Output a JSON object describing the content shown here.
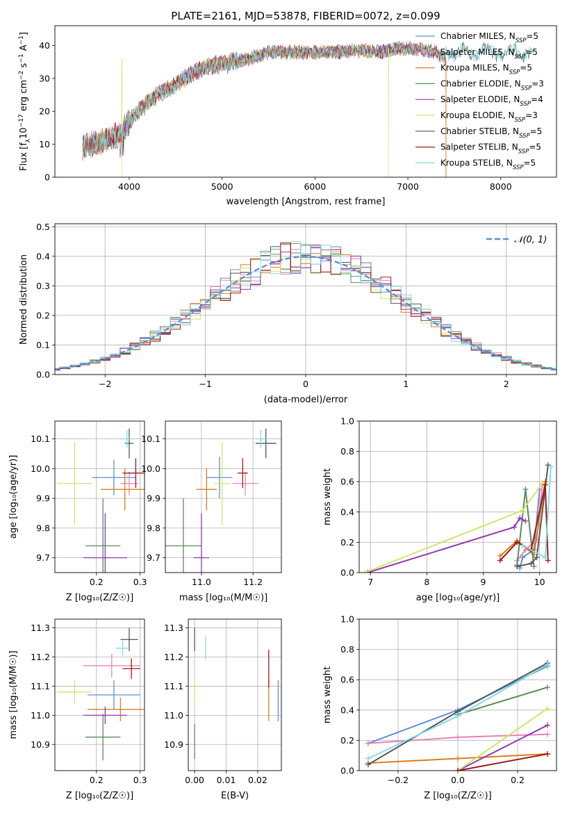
{
  "colors": {
    "Chabrier MILES": "#5b8fd6",
    "Salpeter MILES": "#e882b8",
    "Kroupa MILES": "#e07b1a",
    "Chabrier ELODIE": "#5c8a5c",
    "Salpeter ELODIE": "#8e36b0",
    "Kroupa ELODIE": "#cfe56a",
    "Chabrier STELIB": "#555555",
    "Salpeter STELIB": "#a01818",
    "Kroupa STELIB": "#7fdce6"
  },
  "chart_data": [
    {
      "id": "spectrum",
      "type": "line",
      "title": "PLATE=2161, MJD=53878, FIBERID=0072, z=0.099",
      "xlabel": "wavelength [Angstrom, rest frame]",
      "ylabel": "Flux [fλ10⁻¹⁷ erg cm⁻² s⁻¹ A⁻¹]",
      "xlim": [
        3200,
        8600
      ],
      "ylim": [
        0,
        46
      ],
      "xticks": [
        4000,
        5000,
        6000,
        7000,
        8000
      ],
      "yticks": [
        0,
        10,
        20,
        30,
        40
      ],
      "legend_position": "upper-right",
      "legend": [
        {
          "model": "Chabrier MILES",
          "label": "Chabrier MILES, N",
          "sub": "SSP",
          "tail": "=5"
        },
        {
          "model": "Salpeter MILES",
          "label": "Salpeter MILES, N",
          "sub": "SSP",
          "tail": "=5"
        },
        {
          "model": "Kroupa MILES",
          "label": "Kroupa MILES, N",
          "sub": "SSP",
          "tail": "=5"
        },
        {
          "model": "Chabrier ELODIE",
          "label": "Chabrier ELODIE, N",
          "sub": "SSP",
          "tail": "=3"
        },
        {
          "model": "Salpeter ELODIE",
          "label": "Salpeter ELODIE, N",
          "sub": "SSP",
          "tail": "=4"
        },
        {
          "model": "Kroupa ELODIE",
          "label": "Kroupa ELODIE, N",
          "sub": "SSP",
          "tail": "=3"
        },
        {
          "model": "Chabrier STELIB",
          "label": "Chabrier STELIB, N",
          "sub": "SSP",
          "tail": "=5"
        },
        {
          "model": "Salpeter STELIB",
          "label": "Salpeter STELIB, N",
          "sub": "SSP",
          "tail": "=5"
        },
        {
          "model": "Kroupa STELIB",
          "label": "Kroupa STELIB, N",
          "sub": "SSP",
          "tail": "=5"
        }
      ],
      "continuum": [
        [
          3500,
          9
        ],
        [
          3700,
          11
        ],
        [
          3900,
          13
        ],
        [
          4000,
          17
        ],
        [
          4100,
          20
        ],
        [
          4300,
          25
        ],
        [
          4500,
          28
        ],
        [
          4700,
          32
        ],
        [
          4900,
          34
        ],
        [
          5100,
          35
        ],
        [
          5300,
          36
        ],
        [
          5500,
          38
        ],
        [
          5700,
          38
        ],
        [
          5900,
          38
        ],
        [
          6100,
          38
        ],
        [
          6300,
          38
        ],
        [
          6500,
          38.5
        ],
        [
          6700,
          38
        ],
        [
          6900,
          39
        ],
        [
          7100,
          39
        ],
        [
          7300,
          38
        ],
        [
          7410,
          36
        ]
      ],
      "kroupa_stelib_extends_to": 8350,
      "notable_dips": [
        {
          "model": "Kroupa MILES",
          "x": 7410,
          "y": 0
        },
        {
          "model": "Kroupa ELODIE",
          "x": 6790,
          "y": 0
        },
        {
          "model": "Kroupa ELODIE",
          "x": 3920,
          "y": 0
        }
      ]
    },
    {
      "id": "residuals",
      "type": "histogram",
      "xlabel": "(data-model)/error",
      "ylabel": "Normed distribution",
      "xlim": [
        -2.5,
        2.5
      ],
      "ylim": [
        0,
        0.51
      ],
      "xticks": [
        -2,
        -1,
        0,
        1,
        2
      ],
      "yticks": [
        0.0,
        0.1,
        0.2,
        0.3,
        0.4,
        0.5
      ],
      "bin_width": 0.1,
      "legend_position": "upper-right",
      "reference": {
        "label": "𝒩(0, 1)",
        "mu": 0,
        "sigma": 1,
        "color": "#5b8fd6"
      }
    },
    {
      "id": "age_vs_Z",
      "type": "errorbar",
      "xlabel": "Z [log₁₀(Z/Z☉)]",
      "ylabel": "age  [log₁₀(age/yr)]",
      "xlim": [
        0.105,
        0.31
      ],
      "ylim": [
        9.65,
        10.16
      ],
      "xticks": [
        0.2,
        0.3
      ],
      "yticks": [
        9.7,
        9.8,
        9.9,
        10.0,
        10.1
      ],
      "points": [
        {
          "model": "Chabrier MILES",
          "x": 0.24,
          "xerr": 0.05,
          "y": 9.97,
          "yerr": 0.06
        },
        {
          "model": "Salpeter MILES",
          "x": 0.275,
          "xerr": 0.02,
          "y": 9.95,
          "yerr": 0.04
        },
        {
          "model": "Kroupa MILES",
          "x": 0.265,
          "xerr": 0.055,
          "y": 9.93,
          "yerr": 0.07
        },
        {
          "model": "Chabrier ELODIE",
          "x": 0.215,
          "xerr": 0.04,
          "y": 9.74,
          "yerr": 0.16
        },
        {
          "model": "Salpeter ELODIE",
          "x": 0.22,
          "xerr": 0.05,
          "y": 9.7,
          "yerr": 0.15
        },
        {
          "model": "Kroupa ELODIE",
          "x": 0.15,
          "xerr": 0.04,
          "y": 9.95,
          "yerr": 0.14
        },
        {
          "model": "Chabrier STELIB",
          "x": 0.275,
          "xerr": 0.01,
          "y": 10.085,
          "yerr": 0.05
        },
        {
          "model": "Salpeter STELIB",
          "x": 0.29,
          "xerr": 0.03,
          "y": 9.985,
          "yerr": 0.05
        },
        {
          "model": "Kroupa STELIB",
          "x": 0.27,
          "xerr": 0.015,
          "y": 10.1,
          "yerr": 0.03
        }
      ]
    },
    {
      "id": "age_vs_mass",
      "type": "errorbar",
      "xlabel": "mass [log₁₀(M/M☉)]",
      "ylabel": "",
      "xlim": [
        10.86,
        11.31
      ],
      "ylim": [
        9.65,
        10.16
      ],
      "xticks": [
        11.0,
        11.2
      ],
      "yticks": [
        9.7,
        9.8,
        9.9,
        10.0,
        10.1
      ],
      "points": [
        {
          "model": "Chabrier MILES",
          "x": 11.07,
          "xerr": 0.05,
          "y": 9.97,
          "yerr": 0.07
        },
        {
          "model": "Salpeter MILES",
          "x": 11.17,
          "xerr": 0.05,
          "y": 9.95,
          "yerr": 0.04
        },
        {
          "model": "Kroupa MILES",
          "x": 11.02,
          "xerr": 0.04,
          "y": 9.93,
          "yerr": 0.07
        },
        {
          "model": "Chabrier ELODIE",
          "x": 10.93,
          "xerr": 0.07,
          "y": 9.74,
          "yerr": 0.16
        },
        {
          "model": "Salpeter ELODIE",
          "x": 11.0,
          "xerr": 0.03,
          "y": 9.7,
          "yerr": 0.15
        },
        {
          "model": "Kroupa ELODIE",
          "x": 11.08,
          "xerr": 0.03,
          "y": 9.95,
          "yerr": 0.14
        },
        {
          "model": "Chabrier STELIB",
          "x": 11.25,
          "xerr": 0.04,
          "y": 10.085,
          "yerr": 0.05
        },
        {
          "model": "Salpeter STELIB",
          "x": 11.16,
          "xerr": 0.02,
          "y": 9.985,
          "yerr": 0.05
        },
        {
          "model": "Kroupa STELIB",
          "x": 11.23,
          "xerr": 0.02,
          "y": 10.1,
          "yerr": 0.03
        }
      ]
    },
    {
      "id": "weight_vs_age",
      "type": "line",
      "xlabel": "age  [log₁₀(age/yr)]",
      "ylabel": "mass weight",
      "xlim": [
        6.8,
        10.3
      ],
      "ylim": [
        0,
        1.0
      ],
      "xticks": [
        7,
        8,
        9,
        10
      ],
      "yticks": [
        0.0,
        0.2,
        0.4,
        0.6,
        0.8,
        1.0
      ],
      "series": [
        {
          "model": "Chabrier MILES",
          "points": [
            [
              9.65,
              0.03
            ],
            [
              9.7,
              0.1
            ],
            [
              9.9,
              0.15
            ],
            [
              10.0,
              0.55
            ]
          ]
        },
        {
          "model": "Salpeter MILES",
          "points": [
            [
              9.6,
              0.08
            ],
            [
              9.75,
              0.15
            ],
            [
              9.95,
              0.22
            ],
            [
              10.05,
              0.58
            ]
          ]
        },
        {
          "model": "Kroupa MILES",
          "points": [
            [
              9.3,
              0.11
            ],
            [
              9.6,
              0.21
            ],
            [
              9.9,
              0.12
            ],
            [
              10.1,
              0.6
            ]
          ]
        },
        {
          "model": "Chabrier ELODIE",
          "points": [
            [
              9.6,
              0.05
            ],
            [
              9.75,
              0.55
            ],
            [
              9.9,
              0.04
            ]
          ]
        },
        {
          "model": "Salpeter ELODIE",
          "points": [
            [
              6.95,
              0.0
            ],
            [
              9.55,
              0.3
            ],
            [
              9.65,
              0.36
            ],
            [
              9.75,
              0.34
            ]
          ]
        },
        {
          "model": "Kroupa ELODIE",
          "points": [
            [
              6.9,
              0.0
            ],
            [
              9.7,
              0.41
            ],
            [
              10.05,
              0.59
            ]
          ]
        },
        {
          "model": "Chabrier STELIB",
          "points": [
            [
              9.6,
              0.04
            ],
            [
              9.85,
              0.06
            ],
            [
              9.95,
              0.1
            ],
            [
              10.15,
              0.71
            ]
          ]
        },
        {
          "model": "Salpeter STELIB",
          "points": [
            [
              9.3,
              0.08
            ],
            [
              9.6,
              0.2
            ],
            [
              9.85,
              0.15
            ],
            [
              10.1,
              0.58
            ],
            [
              10.15,
              0.08
            ]
          ]
        },
        {
          "model": "Kroupa STELIB",
          "points": [
            [
              9.7,
              0.18
            ],
            [
              10.1,
              0.1
            ],
            [
              10.2,
              0.7
            ]
          ]
        }
      ]
    },
    {
      "id": "mass_vs_Z",
      "type": "errorbar",
      "xlabel": "Z [log₁₀(Z/Z☉)]",
      "ylabel": "mass [log₁₀(M/M☉)]",
      "xlim": [
        0.105,
        0.31
      ],
      "ylim": [
        10.81,
        11.33
      ],
      "xticks": [
        0.2,
        0.3
      ],
      "yticks": [
        10.9,
        11.0,
        11.1,
        11.2,
        11.3
      ],
      "points": [
        {
          "model": "Chabrier MILES",
          "x": 0.24,
          "xerr": 0.06,
          "y": 11.07,
          "yerr": 0.05
        },
        {
          "model": "Salpeter MILES",
          "x": 0.235,
          "xerr": 0.065,
          "y": 11.17,
          "yerr": 0.04
        },
        {
          "model": "Kroupa MILES",
          "x": 0.255,
          "xerr": 0.075,
          "y": 11.02,
          "yerr": 0.04
        },
        {
          "model": "Chabrier ELODIE",
          "x": 0.215,
          "xerr": 0.04,
          "y": 10.925,
          "yerr": 0.08
        },
        {
          "model": "Salpeter ELODIE",
          "x": 0.22,
          "xerr": 0.05,
          "y": 11.0,
          "yerr": 0.03
        },
        {
          "model": "Kroupa ELODIE",
          "x": 0.15,
          "xerr": 0.04,
          "y": 11.08,
          "yerr": 0.04
        },
        {
          "model": "Chabrier STELIB",
          "x": 0.275,
          "xerr": 0.02,
          "y": 11.26,
          "yerr": 0.04
        },
        {
          "model": "Salpeter STELIB",
          "x": 0.28,
          "xerr": 0.02,
          "y": 11.16,
          "yerr": 0.035
        },
        {
          "model": "Kroupa STELIB",
          "x": 0.26,
          "xerr": 0.015,
          "y": 11.23,
          "yerr": 0.025
        }
      ]
    },
    {
      "id": "mass_vs_ebv",
      "type": "errorbar",
      "xlabel": "E(B-V)",
      "ylabel": "",
      "xlim": [
        -0.002,
        0.0275
      ],
      "ylim": [
        10.81,
        11.33
      ],
      "xticks": [
        0.0,
        0.01,
        0.02
      ],
      "xtick_labels": [
        "0.00",
        "0.01",
        "0.02"
      ],
      "yticks": [
        10.9,
        11.0,
        11.1,
        11.2,
        11.3
      ],
      "points": [
        {
          "model": "Chabrier MILES",
          "x": 0.0265,
          "y": 11.05,
          "yerr": 0.07
        },
        {
          "model": "Kroupa MILES",
          "x": 0.0235,
          "y": 11.05,
          "yerr": 0.07
        },
        {
          "model": "Salpeter STELIB",
          "x": 0.0235,
          "y": 11.16,
          "yerr": 0.065
        },
        {
          "model": "Kroupa STELIB",
          "x": 0.0035,
          "y": 11.23,
          "yerr": 0.04
        },
        {
          "model": "Chabrier STELIB",
          "x": 0.0,
          "y": 11.26,
          "yerr": 0.04
        },
        {
          "model": "Kroupa ELODIE",
          "x": 0.0,
          "y": 11.08,
          "yerr": 0.04
        },
        {
          "model": "Chabrier ELODIE",
          "x": 0.0,
          "y": 10.91,
          "yerr": 0.06
        }
      ]
    },
    {
      "id": "weight_vs_Z",
      "type": "line",
      "xlabel": "Z [log₁₀(Z/Z☉)]",
      "ylabel": "mass weight",
      "xlim": [
        -0.33,
        0.33
      ],
      "ylim": [
        0,
        1.0
      ],
      "xticks": [
        -0.2,
        0.0,
        0.2
      ],
      "yticks": [
        0.0,
        0.2,
        0.4,
        0.6,
        0.8,
        1.0
      ],
      "series": [
        {
          "model": "Chabrier MILES",
          "points": [
            [
              -0.3,
              0.18
            ],
            [
              0.0,
              0.4
            ],
            [
              0.3,
              0.69
            ]
          ]
        },
        {
          "model": "Salpeter MILES",
          "points": [
            [
              -0.3,
              0.18
            ],
            [
              0.0,
              0.22
            ],
            [
              0.3,
              0.24
            ]
          ]
        },
        {
          "model": "Kroupa MILES",
          "points": [
            [
              -0.3,
              0.05
            ],
            [
              0.0,
              0.08
            ],
            [
              0.3,
              0.11
            ]
          ]
        },
        {
          "model": "Chabrier ELODIE",
          "points": [
            [
              0.0,
              0.37
            ],
            [
              0.3,
              0.55
            ]
          ]
        },
        {
          "model": "Salpeter ELODIE",
          "points": [
            [
              0.0,
              0.0
            ],
            [
              0.3,
              0.3
            ]
          ]
        },
        {
          "model": "Kroupa ELODIE",
          "points": [
            [
              0.0,
              0.0
            ],
            [
              0.3,
              0.41
            ]
          ]
        },
        {
          "model": "Chabrier STELIB",
          "points": [
            [
              -0.3,
              0.04
            ],
            [
              0.0,
              0.39
            ],
            [
              0.3,
              0.71
            ]
          ]
        },
        {
          "model": "Salpeter STELIB",
          "points": [
            [
              0.0,
              0.0
            ],
            [
              0.3,
              0.11
            ]
          ]
        },
        {
          "model": "Kroupa STELIB",
          "points": [
            [
              -0.3,
              0.08
            ],
            [
              0.0,
              0.36
            ],
            [
              0.3,
              0.7
            ]
          ]
        }
      ]
    }
  ]
}
